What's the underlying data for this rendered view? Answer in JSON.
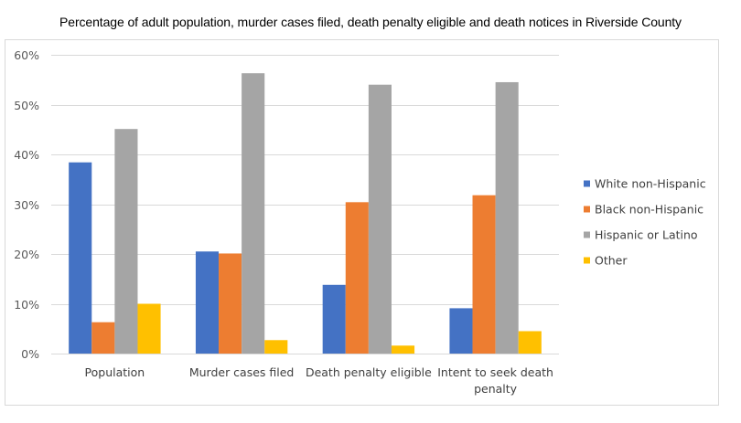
{
  "chart_data": {
    "type": "bar",
    "title": "Percentage of adult population, murder cases filed, death penalty eligible and death notices in Riverside County",
    "xlabel": "",
    "ylabel": "",
    "categories": [
      [
        "Population"
      ],
      [
        "Murder cases filed"
      ],
      [
        "Death penalty eligible"
      ],
      [
        "Intent to seek death",
        "penalty"
      ]
    ],
    "category_names": [
      "Population",
      "Murder cases filed",
      "Death penalty eligible",
      "Intent to seek death penalty"
    ],
    "series": [
      {
        "name": "White non-Hispanic",
        "color": "#4472C4",
        "values": [
          0.384,
          0.205,
          0.138,
          0.091
        ]
      },
      {
        "name": "Black non-Hispanic",
        "color": "#ED7D31",
        "values": [
          0.063,
          0.201,
          0.304,
          0.318
        ]
      },
      {
        "name": "Hispanic or Latino",
        "color": "#A5A5A5",
        "values": [
          0.451,
          0.563,
          0.54,
          0.545
        ]
      },
      {
        "name": "Other",
        "color": "#FFC000",
        "values": [
          0.1,
          0.027,
          0.016,
          0.045
        ]
      }
    ],
    "ylim": [
      0,
      0.6
    ],
    "yticks": [
      0,
      0.1,
      0.2,
      0.3,
      0.4,
      0.5,
      0.6
    ],
    "ytick_labels": [
      "0%",
      "10%",
      "20%",
      "30%",
      "40%",
      "50%",
      "60%"
    ],
    "grid": true,
    "legend_position": "right"
  }
}
